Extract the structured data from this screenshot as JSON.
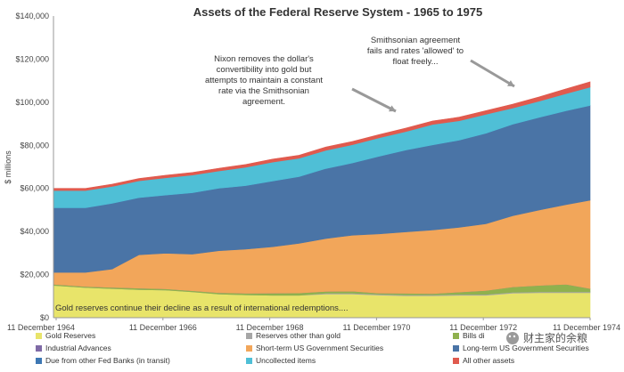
{
  "chart_data": {
    "type": "area",
    "stacked": true,
    "title": "Assets of the Federal Reserve System - 1965 to 1975",
    "xlabel": "",
    "ylabel": "$ millions",
    "ylim": [
      0,
      140000
    ],
    "yticks": [
      "$0",
      "$20,000",
      "$40,000",
      "$60,000",
      "$80,000",
      "$100,000",
      "$120,000",
      "$140,000"
    ],
    "xticks": [
      "11 December 1964",
      "11 December 1966",
      "11 December 1968",
      "11 December 1970",
      "11 December 1972",
      "11 December 1974"
    ],
    "x": [
      1964.9,
      1965.5,
      1966.0,
      1966.5,
      1967.0,
      1967.5,
      1968.0,
      1968.5,
      1969.0,
      1969.5,
      1970.0,
      1970.5,
      1971.0,
      1971.5,
      1972.0,
      1972.5,
      1973.0,
      1973.5,
      1974.0,
      1974.5,
      1974.95
    ],
    "xlim": [
      1964.9,
      1974.95
    ],
    "grid": false,
    "legend_position": "bottom",
    "series": [
      {
        "name": "Gold Reserves",
        "color": "#e8e46a",
        "values": [
          15000,
          14000,
          13500,
          13000,
          12800,
          12000,
          11000,
          10600,
          10400,
          10400,
          11000,
          11000,
          10500,
          10200,
          10200,
          10400,
          10400,
          11400,
          11600,
          11600,
          11600
        ]
      },
      {
        "name": "Reserves other than gold",
        "color": "#a6a6a6",
        "values": [
          0,
          0,
          0,
          0,
          0,
          0,
          0,
          0,
          0,
          0,
          400,
          400,
          400,
          400,
          400,
          400,
          400,
          400,
          400,
          400,
          400
        ]
      },
      {
        "name": "Bills discounted",
        "color": "#8fb14e",
        "values": [
          500,
          500,
          600,
          700,
          600,
          500,
          600,
          700,
          1000,
          1100,
          800,
          900,
          500,
          700,
          600,
          1100,
          1800,
          2500,
          3000,
          3500,
          1500
        ]
      },
      {
        "name": "Industrial Advances",
        "color": "#7f6aa6",
        "values": [
          0,
          0,
          0,
          0,
          0,
          0,
          0,
          0,
          0,
          0,
          0,
          0,
          0,
          0,
          0,
          0,
          0,
          0,
          0,
          0,
          0
        ]
      },
      {
        "name": "Short-term US Government Securities",
        "color": "#f2a65a",
        "values": [
          5500,
          6500,
          8500,
          15500,
          16500,
          17000,
          19500,
          20500,
          21500,
          23000,
          24500,
          26000,
          27500,
          28500,
          29500,
          30000,
          31000,
          33000,
          35000,
          37000,
          41000
        ]
      },
      {
        "name": "Long-term US Government Securities",
        "color": "#4a74a6",
        "values": [
          30000,
          30000,
          30500,
          26500,
          27000,
          28500,
          29000,
          29500,
          30500,
          31000,
          32500,
          33500,
          36000,
          38000,
          39500,
          40500,
          42000,
          42500,
          43000,
          43500,
          44000
        ]
      },
      {
        "name": "Due from other Fed Banks (in transit)",
        "color": "#3d77b3",
        "values": [
          0,
          0,
          0,
          0,
          0,
          0,
          0,
          0,
          0,
          0,
          0,
          0,
          0,
          0,
          0,
          0,
          0,
          0,
          0,
          0,
          0
        ]
      },
      {
        "name": "Uncollected items",
        "color": "#4fbfd6",
        "values": [
          8000,
          8000,
          7800,
          7800,
          8000,
          8200,
          8000,
          8500,
          8800,
          8500,
          8500,
          8500,
          8600,
          8600,
          9500,
          9000,
          8800,
          7500,
          7500,
          8000,
          8500
        ]
      },
      {
        "name": "All other assets",
        "color": "#e05a4e",
        "values": [
          1000,
          1000,
          1100,
          1100,
          1200,
          1200,
          1300,
          1300,
          1400,
          1400,
          1500,
          1500,
          1500,
          1600,
          1600,
          1700,
          1700,
          1800,
          2000,
          2200,
          2500
        ]
      }
    ],
    "annotations": [
      {
        "lines": [
          "Nixon removes the dollar's",
          "convertibility into gold but",
          "attempts to maintain a constant",
          "rate via the Smithsonian",
          "agreement."
        ],
        "x": 1971.6,
        "y": 89000
      },
      {
        "lines": [
          "Smithsonian agreement",
          "fails and rates 'allowed' to",
          "float freely..."
        ],
        "x": 1973.6,
        "y": 104000
      },
      {
        "lines": [
          "Gold reserves continue their decline as a result of international redemptions...."
        ],
        "x": 1965.0,
        "y": 5000
      }
    ]
  },
  "legend": [
    "Gold Reserves",
    "Reserves other than gold",
    "Bills di",
    "Industrial Advances",
    "Short-term US Government Securities",
    "Long-term US Government Securities",
    "Due from other Fed Banks (in transit)",
    "Uncollected items",
    "All other assets"
  ],
  "watermark": "财主家的余粮",
  "watermark_icon": "wechat-icon"
}
